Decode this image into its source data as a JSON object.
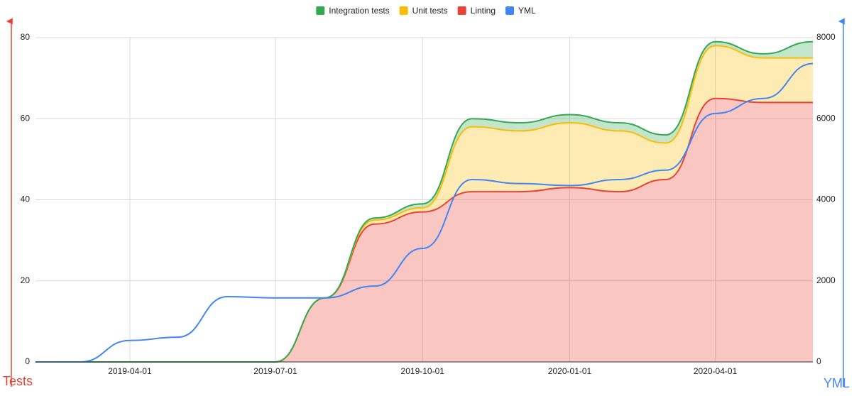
{
  "chart_data": {
    "type": "stacked-area-line",
    "x": [
      "2019-02-01",
      "2019-03-01",
      "2019-04-01",
      "2019-05-01",
      "2019-06-01",
      "2019-07-01",
      "2019-08-01",
      "2019-09-01",
      "2019-10-01",
      "2019-11-01",
      "2019-12-01",
      "2020-01-01",
      "2020-02-01",
      "2020-03-01",
      "2020-04-01",
      "2020-05-01",
      "2020-06-01"
    ],
    "series": [
      {
        "name": "Integration tests",
        "color": "#34a853",
        "values": [
          0,
          0,
          0,
          0,
          0,
          0,
          0,
          0.5,
          1,
          2,
          2,
          2,
          2,
          2,
          1,
          1,
          4
        ]
      },
      {
        "name": "Unit tests",
        "color": "#fbbc04",
        "values": [
          0,
          0,
          0,
          0,
          0,
          0,
          0,
          1,
          1,
          16,
          15,
          16,
          15,
          9,
          13,
          11,
          11
        ]
      },
      {
        "name": "Linting",
        "color": "#ea4335",
        "values": [
          0,
          0,
          0,
          0,
          0,
          0,
          15.8,
          34,
          37,
          42,
          42,
          43,
          42,
          45,
          65,
          64,
          64
        ]
      },
      {
        "name": "YML",
        "color": "#4285f4",
        "axis": "y2",
        "values": [
          0,
          0,
          530,
          610,
          1610,
          1580,
          1580,
          1870,
          2800,
          4500,
          4400,
          4350,
          4500,
          4730,
          6130,
          6500,
          7360
        ]
      }
    ],
    "xlim": [
      "2019-02-01",
      "2020-06-01"
    ],
    "xticks": [
      "2019-04-01",
      "2019-07-01",
      "2019-10-01",
      "2020-01-01",
      "2020-04-01"
    ],
    "ylim": [
      0,
      80
    ],
    "yticks": [
      0,
      20,
      40,
      60,
      80
    ],
    "y2lim": [
      0,
      8000
    ],
    "y2ticks": [
      0,
      2000,
      4000,
      6000,
      8000
    ],
    "y_label": "Tests",
    "y2_label": "YML",
    "stacked": true,
    "grid": true,
    "legend": "top"
  }
}
